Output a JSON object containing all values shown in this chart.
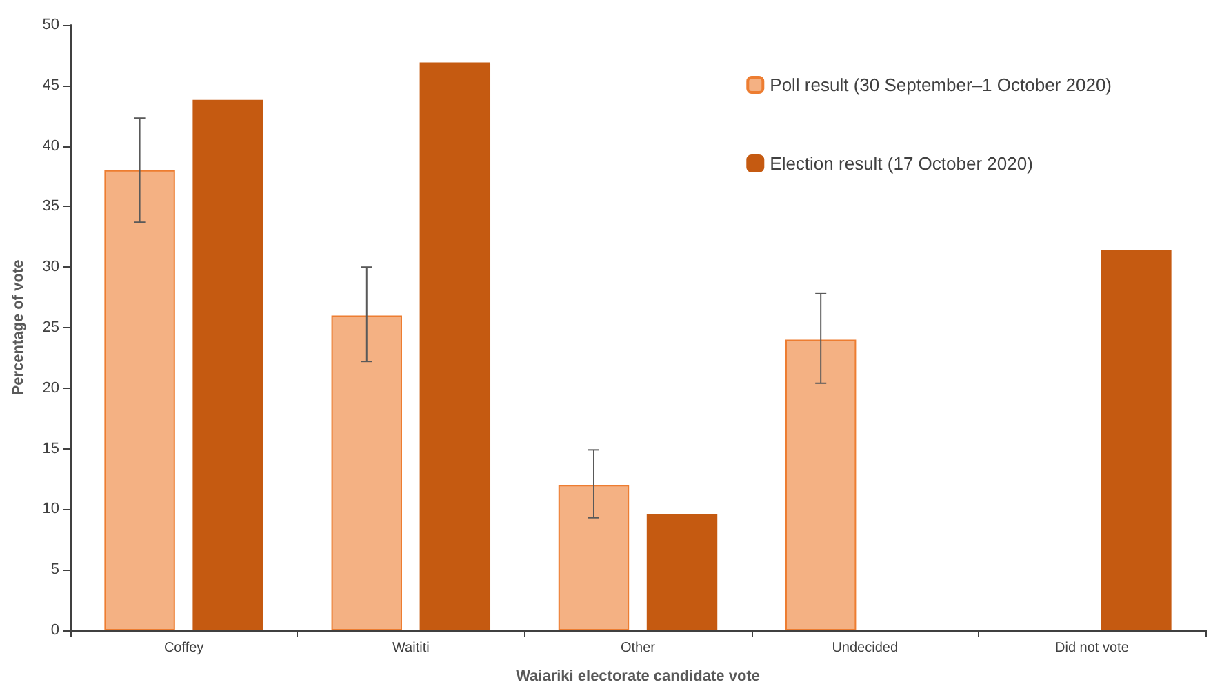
{
  "chart_data": {
    "type": "bar",
    "xlabel": "Waiariki electorate candidate vote",
    "ylabel": "Percentage of vote",
    "categories": [
      "Coffey",
      "Waititi",
      "Other",
      "Undecided",
      "Did not vote"
    ],
    "series": [
      {
        "name": "Poll result (30 September–1 October 2020)",
        "color": "#f4b183",
        "values": [
          38,
          26,
          12,
          24,
          null
        ],
        "errors": [
          [
            33.7,
            42.3
          ],
          [
            22.2,
            30
          ],
          [
            9.3,
            14.9
          ],
          [
            20.4,
            27.8
          ],
          null
        ]
      },
      {
        "name": "Election result (17 October 2020)",
        "color": "#c55a11",
        "values": [
          43.8,
          46.9,
          9.6,
          null,
          31.4
        ]
      }
    ],
    "ylim": [
      0,
      50
    ],
    "yticks": [
      0,
      5,
      10,
      15,
      20,
      25,
      30,
      35,
      40,
      45,
      50
    ],
    "grid": false,
    "legend": "top right"
  }
}
